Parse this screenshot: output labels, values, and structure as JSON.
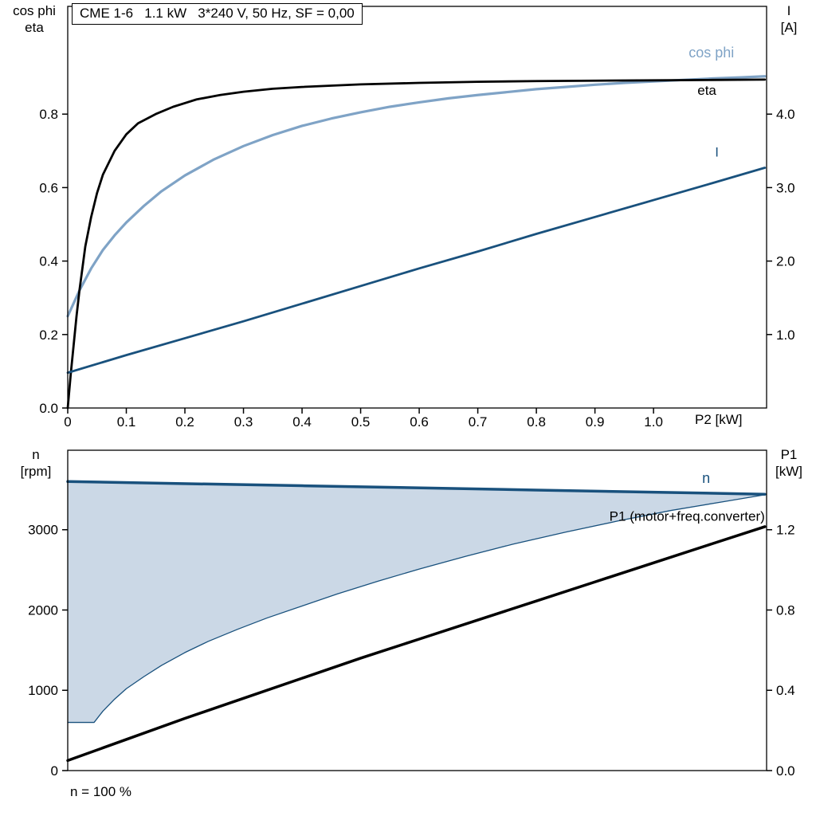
{
  "palette": {
    "light_blue": "#7fa3c6",
    "dark_blue": "#19517d",
    "black": "#000000",
    "area_fill": "#cbd8e6"
  },
  "chart_data": [
    {
      "type": "line",
      "title": "CME 1-6   1.1 kW   3*240 V, 50 Hz, SF = 0,00",
      "axes": {
        "x": {
          "label": "P2 [kW]",
          "min": 0,
          "max": 1.193,
          "ticks": [
            0,
            0.1,
            0.2,
            0.3,
            0.4,
            0.5,
            0.6,
            0.7,
            0.8,
            0.9,
            1.0
          ],
          "tick_labels": [
            "0",
            "0.1",
            "0.2",
            "0.3",
            "0.4",
            "0.5",
            "0.6",
            "0.7",
            "0.8",
            "0.9",
            "1.0"
          ]
        },
        "left": {
          "label_lines": [
            "cos phi",
            "eta"
          ],
          "min": 0,
          "max": 1.0933,
          "ticks": [
            0,
            0.2,
            0.4,
            0.6,
            0.8
          ],
          "tick_labels": [
            "0.0",
            "0.2",
            "0.4",
            "0.6",
            "0.8"
          ]
        },
        "right": {
          "label_lines": [
            "I",
            "[A]"
          ],
          "min": 0,
          "max": 5.4667,
          "ticks": [
            1,
            2,
            3,
            4
          ],
          "tick_labels": [
            "1.0",
            "2.0",
            "3.0",
            "4.0"
          ]
        }
      },
      "series": [
        {
          "name": "cos phi",
          "axis": "left",
          "color": "#7fa3c6",
          "width": 3.2,
          "points": [
            [
              0,
              0.25
            ],
            [
              0.02,
              0.32
            ],
            [
              0.04,
              0.38
            ],
            [
              0.06,
              0.43
            ],
            [
              0.08,
              0.47
            ],
            [
              0.1,
              0.505
            ],
            [
              0.13,
              0.55
            ],
            [
              0.16,
              0.59
            ],
            [
              0.2,
              0.633
            ],
            [
              0.25,
              0.677
            ],
            [
              0.3,
              0.713
            ],
            [
              0.35,
              0.743
            ],
            [
              0.4,
              0.768
            ],
            [
              0.45,
              0.788
            ],
            [
              0.5,
              0.805
            ],
            [
              0.55,
              0.82
            ],
            [
              0.6,
              0.832
            ],
            [
              0.65,
              0.843
            ],
            [
              0.7,
              0.852
            ],
            [
              0.75,
              0.86
            ],
            [
              0.8,
              0.868
            ],
            [
              0.85,
              0.874
            ],
            [
              0.9,
              0.88
            ],
            [
              0.95,
              0.885
            ],
            [
              1.0,
              0.889
            ],
            [
              1.05,
              0.893
            ],
            [
              1.1,
              0.897
            ],
            [
              1.15,
              0.9
            ],
            [
              1.19,
              0.903
            ]
          ],
          "label": {
            "text": "cos phi",
            "x": 1.06,
            "y": 0.955,
            "anchor": "start",
            "size": 18
          }
        },
        {
          "name": "eta",
          "axis": "left",
          "color": "#000000",
          "width": 2.8,
          "points": [
            [
              0,
              0
            ],
            [
              0.005,
              0.09
            ],
            [
              0.01,
              0.17
            ],
            [
              0.015,
              0.25
            ],
            [
              0.02,
              0.32
            ],
            [
              0.03,
              0.44
            ],
            [
              0.04,
              0.52
            ],
            [
              0.05,
              0.585
            ],
            [
              0.06,
              0.635
            ],
            [
              0.08,
              0.7
            ],
            [
              0.1,
              0.745
            ],
            [
              0.12,
              0.775
            ],
            [
              0.15,
              0.8
            ],
            [
              0.18,
              0.82
            ],
            [
              0.22,
              0.84
            ],
            [
              0.26,
              0.852
            ],
            [
              0.3,
              0.861
            ],
            [
              0.35,
              0.869
            ],
            [
              0.4,
              0.874
            ],
            [
              0.5,
              0.881
            ],
            [
              0.6,
              0.885
            ],
            [
              0.7,
              0.888
            ],
            [
              0.8,
              0.89
            ],
            [
              0.9,
              0.891
            ],
            [
              1.0,
              0.892
            ],
            [
              1.1,
              0.893
            ],
            [
              1.19,
              0.894
            ]
          ],
          "label": {
            "text": "eta",
            "x": 1.075,
            "y": 0.853,
            "anchor": "start",
            "size": 17
          }
        },
        {
          "name": "I",
          "axis": "right",
          "color": "#19517d",
          "width": 2.8,
          "points": [
            [
              0,
              0.48
            ],
            [
              0.1,
              0.72
            ],
            [
              0.2,
              0.95
            ],
            [
              0.3,
              1.18
            ],
            [
              0.4,
              1.42
            ],
            [
              0.5,
              1.66
            ],
            [
              0.6,
              1.9
            ],
            [
              0.7,
              2.13
            ],
            [
              0.8,
              2.37
            ],
            [
              0.9,
              2.6
            ],
            [
              1.0,
              2.83
            ],
            [
              1.1,
              3.06
            ],
            [
              1.19,
              3.27
            ]
          ],
          "label": {
            "text": "I",
            "x": 1.105,
            "y": 3.42,
            "anchor": "start",
            "size": 17
          }
        }
      ]
    },
    {
      "type": "line",
      "footnote": "n = 100 %",
      "axes": {
        "x": {
          "label": "",
          "min": 0,
          "max": 1.193,
          "ticks": [],
          "tick_labels": []
        },
        "left": {
          "label_lines": [
            "n",
            "[rpm]"
          ],
          "min": 0,
          "max": 3990,
          "ticks": [
            0,
            1000,
            2000,
            3000
          ],
          "tick_labels": [
            "0",
            "1000",
            "2000",
            "3000"
          ]
        },
        "right": {
          "label_lines": [
            "P1",
            "[kW]"
          ],
          "min": 0,
          "max": 1.596,
          "ticks": [
            0,
            0.4,
            0.8,
            1.2
          ],
          "tick_labels": [
            "0.0",
            "0.4",
            "0.8",
            "1.2"
          ]
        }
      },
      "area": {
        "name": "speed-control-range",
        "axis": "left",
        "fill": "#cbd8e6",
        "lower": [
          [
            0,
            600
          ],
          [
            0.045,
            600
          ],
          [
            0.06,
            740
          ],
          [
            0.08,
            890
          ],
          [
            0.1,
            1020
          ],
          [
            0.13,
            1170
          ],
          [
            0.16,
            1310
          ],
          [
            0.2,
            1470
          ],
          [
            0.24,
            1610
          ],
          [
            0.29,
            1760
          ],
          [
            0.34,
            1900
          ],
          [
            0.4,
            2050
          ],
          [
            0.46,
            2200
          ],
          [
            0.53,
            2360
          ],
          [
            0.6,
            2510
          ],
          [
            0.68,
            2670
          ],
          [
            0.76,
            2820
          ],
          [
            0.85,
            2970
          ],
          [
            0.94,
            3110
          ],
          [
            1.03,
            3240
          ],
          [
            1.12,
            3350
          ],
          [
            1.19,
            3435
          ]
        ],
        "upper": [
          [
            0,
            3600
          ],
          [
            0.4,
            3548
          ],
          [
            0.8,
            3494
          ],
          [
            1.19,
            3442
          ]
        ]
      },
      "series": [
        {
          "name": "speed range lower bound",
          "axis": "left",
          "color": "#19517d",
          "width": 1.3,
          "points": [
            [
              0,
              600
            ],
            [
              0.045,
              600
            ],
            [
              0.06,
              740
            ],
            [
              0.08,
              890
            ],
            [
              0.1,
              1020
            ],
            [
              0.13,
              1170
            ],
            [
              0.16,
              1310
            ],
            [
              0.2,
              1470
            ],
            [
              0.24,
              1610
            ],
            [
              0.29,
              1760
            ],
            [
              0.34,
              1900
            ],
            [
              0.4,
              2050
            ],
            [
              0.46,
              2200
            ],
            [
              0.53,
              2360
            ],
            [
              0.6,
              2510
            ],
            [
              0.68,
              2670
            ],
            [
              0.76,
              2820
            ],
            [
              0.85,
              2970
            ],
            [
              0.94,
              3110
            ],
            [
              1.03,
              3240
            ],
            [
              1.12,
              3350
            ],
            [
              1.19,
              3435
            ]
          ]
        },
        {
          "name": "n",
          "axis": "left",
          "color": "#19517d",
          "width": 3.5,
          "points": [
            [
              0,
              3600
            ],
            [
              0.4,
              3548
            ],
            [
              0.8,
              3494
            ],
            [
              1.19,
              3442
            ]
          ],
          "label": {
            "text": "n",
            "x": 1.083,
            "y": 3585,
            "anchor": "start",
            "size": 18
          }
        },
        {
          "name": "P1 (motor+freq.converter)",
          "axis": "right",
          "color": "#000000",
          "width": 3.5,
          "points": [
            [
              0,
              0.05
            ],
            [
              0.1,
              0.155
            ],
            [
              0.2,
              0.26
            ],
            [
              0.3,
              0.36
            ],
            [
              0.4,
              0.46
            ],
            [
              0.5,
              0.56
            ],
            [
              0.6,
              0.655
            ],
            [
              0.7,
              0.75
            ],
            [
              0.8,
              0.845
            ],
            [
              0.9,
              0.94
            ],
            [
              1.0,
              1.035
            ],
            [
              1.1,
              1.13
            ],
            [
              1.19,
              1.215
            ]
          ],
          "label": {
            "text": "P1 (motor+freq.converter)",
            "x": 1.19,
            "y": 1.245,
            "anchor": "end",
            "size": 17
          }
        }
      ]
    }
  ]
}
